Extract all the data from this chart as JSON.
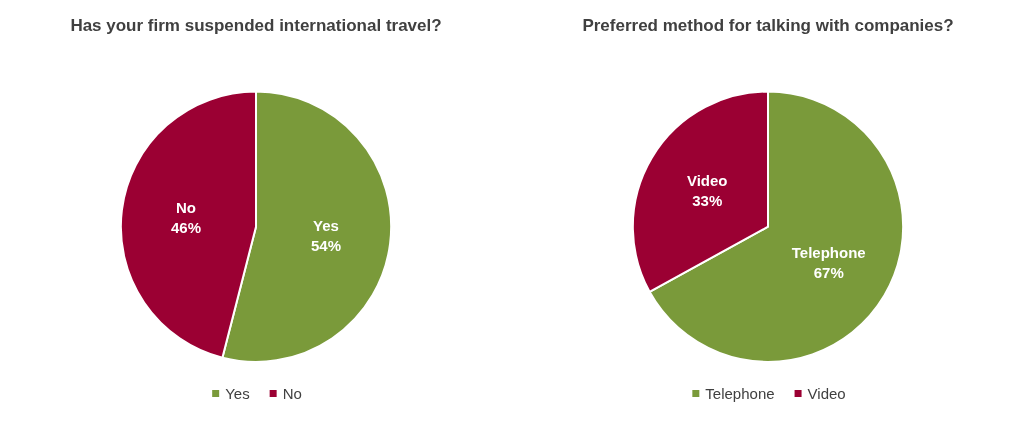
{
  "chart_data": [
    {
      "type": "pie",
      "title": "Has your firm suspended international travel?",
      "categories": [
        "Yes",
        "No"
      ],
      "values": [
        54,
        46
      ],
      "colors": [
        "#7a9a3a",
        "#9b0033"
      ],
      "value_labels": [
        "54%",
        "46%"
      ],
      "legend": "bottom"
    },
    {
      "type": "pie",
      "title": "Preferred method for talking with companies?",
      "categories": [
        "Telephone",
        "Video"
      ],
      "values": [
        67,
        33
      ],
      "colors": [
        "#7a9a3a",
        "#9b0033"
      ],
      "value_labels": [
        "67%",
        "33%"
      ],
      "legend": "bottom"
    }
  ]
}
